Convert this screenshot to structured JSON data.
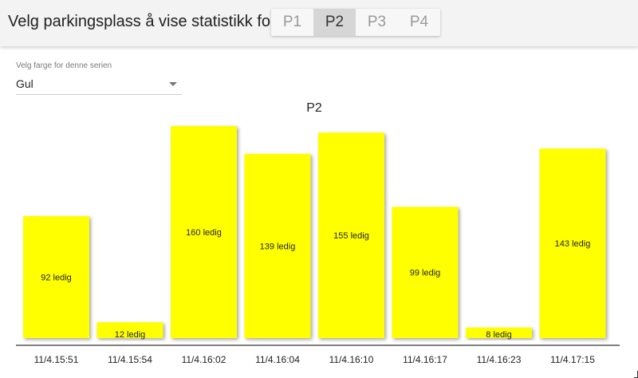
{
  "header": {
    "prompt": "Velg parkingsplass å vise statistikk for:",
    "tabs": [
      {
        "label": "P1",
        "active": false
      },
      {
        "label": "P2",
        "active": true
      },
      {
        "label": "P3",
        "active": false
      },
      {
        "label": "P4",
        "active": false
      }
    ]
  },
  "color_select": {
    "label": "Velg farge for denne serien",
    "value": "Gul"
  },
  "colors": {
    "bar": "#ffff00",
    "axis": "#555555"
  },
  "chart_data": {
    "type": "bar",
    "title": "P2",
    "categories": [
      "11/4.15:51",
      "11/4.15:54",
      "11/4.16:02",
      "11/4.16:04",
      "11/4.16:10",
      "11/4.16:17",
      "11/4.16:23",
      "11/4.17:15"
    ],
    "values": [
      92,
      12,
      160,
      139,
      155,
      99,
      8,
      143
    ],
    "data_labels": [
      "92 ledig",
      "12 ledig",
      "160 ledig",
      "139 ledig",
      "155 ledig",
      "99 ledig",
      "8 ledig",
      "143 ledig"
    ],
    "ylim": [
      0,
      160
    ],
    "grid": false,
    "legend": "none"
  }
}
